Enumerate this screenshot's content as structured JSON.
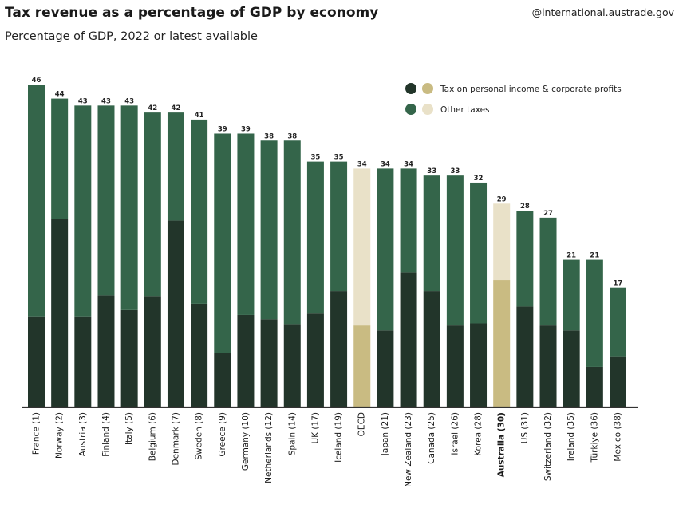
{
  "title": "Tax revenue as a percentage of GDP by economy",
  "subtitle": "Percentage of GDP, 2022 or latest available",
  "source": "@international.austrade.gov",
  "colors": {
    "income_dark": "#22352a",
    "other_green": "#34654a",
    "highlight_income": "#c9bb82",
    "highlight_other": "#e9e1c8",
    "axis": "#333333"
  },
  "chart_data": {
    "type": "bar",
    "stacked": true,
    "title": "Tax revenue as a percentage of GDP by economy",
    "subtitle": "Percentage of GDP, 2022 or latest available",
    "xlabel": "",
    "ylabel": "",
    "ylim": [
      0,
      46
    ],
    "grid": false,
    "legend_position": "top-right",
    "highlighted": [
      "OECD",
      "Australia (30)"
    ],
    "categories": [
      "France (1)",
      "Norway (2)",
      "Austria (3)",
      "Finland (4)",
      "Italy (5)",
      "Belgium (6)",
      "Denmark (7)",
      "Sweden (8)",
      "Greece (9)",
      "Germany (10)",
      "Netherlands (12)",
      "Spain (14)",
      "UK (17)",
      "Iceland (19)",
      "OECD",
      "Japan (21)",
      "New Zealand (23)",
      "Canada (25)",
      "Israel (26)",
      "Korea (28)",
      "Australia (30)",
      "US (31)",
      "Switzerland (32)",
      "Ireland (35)",
      "Türkiye (36)",
      "Mexico (38)"
    ],
    "totals": [
      46,
      44,
      43,
      43,
      43,
      42,
      42,
      41,
      39,
      39,
      38,
      38,
      35,
      35,
      34,
      34,
      34,
      33,
      33,
      32,
      29,
      28,
      27,
      21,
      21,
      17
    ],
    "series": [
      {
        "name": "Tax on personal income & corporate profits",
        "values": [
          12.9,
          26.8,
          12.9,
          15.9,
          13.8,
          15.8,
          26.6,
          14.7,
          7.7,
          13.1,
          12.5,
          11.8,
          13.3,
          16.5,
          11.6,
          10.9,
          19.2,
          16.5,
          11.6,
          11.9,
          18.1,
          14.3,
          11.6,
          10.9,
          5.7,
          7.1
        ]
      },
      {
        "name": "Other taxes",
        "values": [
          33.1,
          17.2,
          30.1,
          27.1,
          29.2,
          26.2,
          15.4,
          26.3,
          31.3,
          25.9,
          25.5,
          26.2,
          21.7,
          18.5,
          22.4,
          23.1,
          14.8,
          16.5,
          21.4,
          20.1,
          10.9,
          13.7,
          15.4,
          10.1,
          15.3,
          9.9
        ]
      }
    ]
  }
}
